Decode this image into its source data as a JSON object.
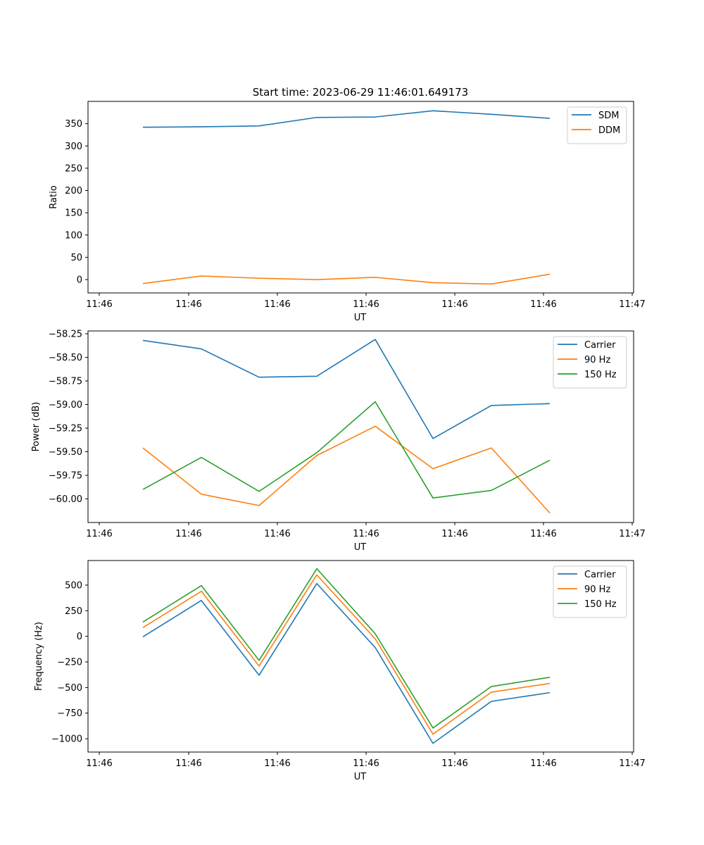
{
  "figure": {
    "title": "Start time: 2023-06-29 11:46:01.649173"
  },
  "chart_data": [
    {
      "type": "line",
      "xlabel": "UT",
      "ylabel": "Ratio",
      "xtick_labels": [
        "11:46",
        "11:46",
        "11:46",
        "11:46",
        "11:46",
        "11:46",
        "11:47"
      ],
      "ylim": [
        -30,
        400
      ],
      "yticks": [
        0,
        50,
        100,
        150,
        200,
        250,
        300,
        350
      ],
      "ytick_labels": [
        "0",
        "50",
        "100",
        "150",
        "200",
        "250",
        "300",
        "350"
      ],
      "legend_position": "top-right",
      "grid": false,
      "series": [
        {
          "name": "SDM",
          "color": "#1f77b4",
          "values": [
            342,
            343,
            345,
            364,
            365,
            379,
            371,
            362
          ]
        },
        {
          "name": "DDM",
          "color": "#ff7f0e",
          "values": [
            -9,
            8,
            3,
            0,
            5,
            -7,
            -10,
            12
          ]
        }
      ]
    },
    {
      "type": "line",
      "xlabel": "UT",
      "ylabel": "Power (dB)",
      "xtick_labels": [
        "11:46",
        "11:46",
        "11:46",
        "11:46",
        "11:46",
        "11:46",
        "11:47"
      ],
      "ylim": [
        -60.25,
        -58.22
      ],
      "yticks": [
        -60.0,
        -59.75,
        -59.5,
        -59.25,
        -59.0,
        -58.75,
        -58.5,
        -58.25
      ],
      "ytick_labels": [
        "−60.00",
        "−59.75",
        "−59.50",
        "−59.25",
        "−59.00",
        "−58.75",
        "−58.50",
        "−58.25"
      ],
      "legend_position": "top-right",
      "grid": false,
      "series": [
        {
          "name": "Carrier",
          "color": "#1f77b4",
          "values": [
            -58.32,
            -58.41,
            -58.71,
            -58.7,
            -58.31,
            -59.36,
            -59.01,
            -58.99
          ]
        },
        {
          "name": "90 Hz",
          "color": "#ff7f0e",
          "values": [
            -59.46,
            -59.95,
            -60.07,
            -59.54,
            -59.23,
            -59.68,
            -59.46,
            -60.15
          ]
        },
        {
          "name": "150 Hz",
          "color": "#2ca02c",
          "values": [
            -59.9,
            -59.56,
            -59.92,
            -59.51,
            -58.97,
            -59.99,
            -59.91,
            -59.59
          ]
        }
      ]
    },
    {
      "type": "line",
      "xlabel": "UT",
      "ylabel": "Frequency (Hz)",
      "xtick_labels": [
        "11:46",
        "11:46",
        "11:46",
        "11:46",
        "11:46",
        "11:46",
        "11:47"
      ],
      "ylim": [
        -1130,
        740
      ],
      "yticks": [
        -1000,
        -750,
        -500,
        -250,
        0,
        250,
        500
      ],
      "ytick_labels": [
        "−1000",
        "−750",
        "−500",
        "−250",
        "0",
        "250",
        "500"
      ],
      "legend_position": "top-right",
      "grid": false,
      "series": [
        {
          "name": "Carrier",
          "color": "#1f77b4",
          "values": [
            -5,
            350,
            -380,
            515,
            -110,
            -1045,
            -635,
            -550
          ]
        },
        {
          "name": "90 Hz",
          "color": "#ff7f0e",
          "values": [
            85,
            440,
            -290,
            600,
            -25,
            -955,
            -545,
            -460
          ]
        },
        {
          "name": "150 Hz",
          "color": "#2ca02c",
          "values": [
            140,
            495,
            -235,
            660,
            25,
            -895,
            -490,
            -400
          ]
        }
      ]
    }
  ]
}
